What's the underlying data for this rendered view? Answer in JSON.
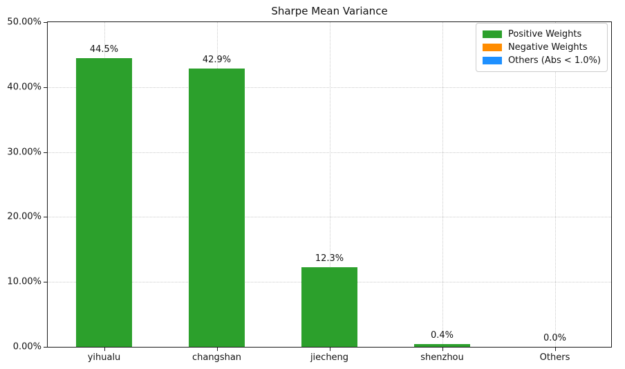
{
  "chart_data": {
    "type": "bar",
    "title": "Sharpe Mean Variance",
    "categories": [
      "yihualu",
      "changshan",
      "jiecheng",
      "shenzhou",
      "Others"
    ],
    "values": [
      44.5,
      42.9,
      12.3,
      0.4,
      0.0
    ],
    "bar_labels": [
      "44.5%",
      "42.9%",
      "12.3%",
      "0.4%",
      "0.0%"
    ],
    "bar_color": "#2ca02c",
    "xlabel": "",
    "ylabel": "",
    "ylim": [
      0,
      50
    ],
    "yticks": [
      {
        "value": 0,
        "label": "0.00%"
      },
      {
        "value": 10,
        "label": "10.00%"
      },
      {
        "value": 20,
        "label": "20.00%"
      },
      {
        "value": 30,
        "label": "30.00%"
      },
      {
        "value": 40,
        "label": "40.00%"
      },
      {
        "value": 50,
        "label": "50.00%"
      }
    ],
    "grid": true,
    "legend": {
      "position": "upper right",
      "entries": [
        {
          "label": "Positive Weights",
          "color": "#2ca02c"
        },
        {
          "label": "Negative Weights",
          "color": "#ff8c00"
        },
        {
          "label": "Others (Abs < 1.0%)",
          "color": "#1e90ff"
        }
      ]
    }
  }
}
